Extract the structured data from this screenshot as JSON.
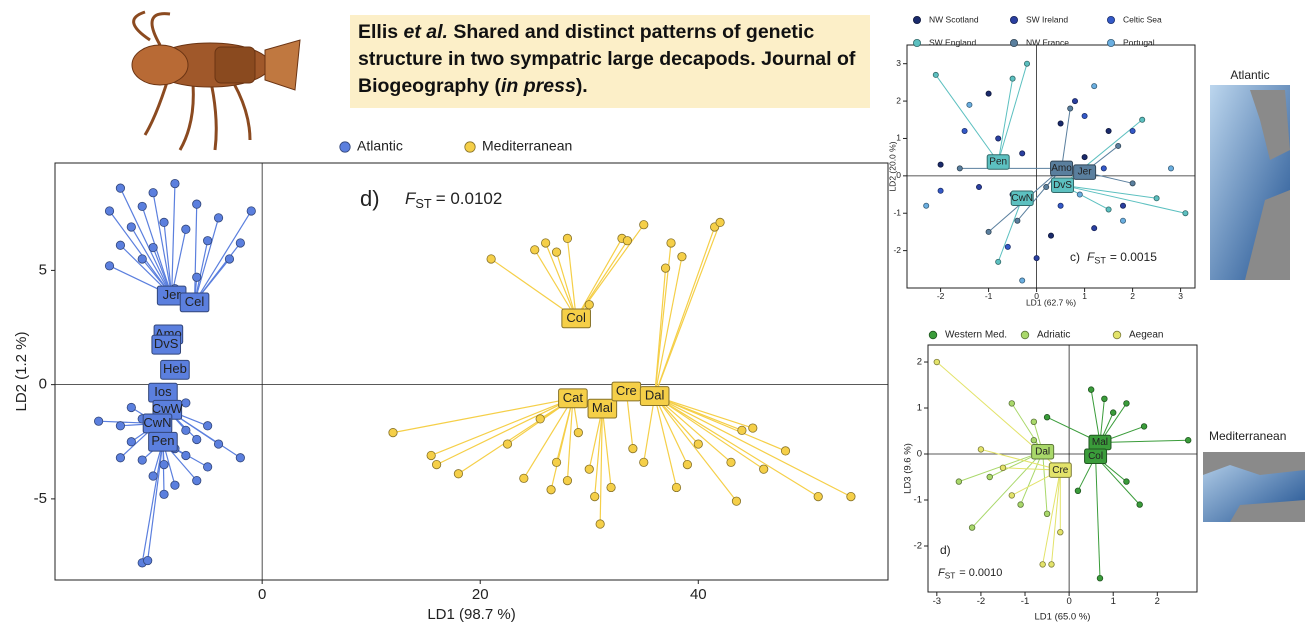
{
  "header": {
    "title": [
      "Ellis ",
      "et al.",
      " Shared and distinct patterns of genetic structure in two sympatric large decapods. Journal of Biogeography (",
      "in press",
      ")."
    ]
  },
  "maps": [
    {
      "label": "Atlantic"
    },
    {
      "label": "Mediterranean"
    }
  ],
  "chart_data": [
    {
      "type": "scatter",
      "x_label": "LD1 (98.7 %)",
      "y_label": "LD2 (1.2 %)",
      "annotation": {
        "prefix": "d)",
        "f": "F",
        "sub": "ST",
        "text": "= 0.0102"
      },
      "xlim": [
        -19,
        57.4
      ],
      "ylim": [
        -8.55,
        9.7
      ],
      "xticks": [
        0,
        20,
        40
      ],
      "yticks": [
        -5,
        0,
        5
      ],
      "series": [
        {
          "name": "Atlantic",
          "color": "#5b7fde",
          "x": [
            -13,
            -10,
            -8,
            -14,
            -11,
            -6,
            -4,
            -12,
            -9,
            -7,
            -5,
            -13,
            -10,
            -2,
            -3,
            -14,
            -11,
            -8,
            -6,
            -1,
            -13,
            -11,
            -9,
            -7,
            -5,
            -12,
            -10,
            -8,
            -6,
            -4,
            -13,
            -11,
            -9,
            -7,
            -5,
            -10,
            -8,
            -6,
            -9,
            -15,
            -2,
            -11,
            -10.5,
            -12,
            -7
          ],
          "y": [
            8.6,
            8.4,
            8.8,
            7.6,
            7.8,
            7.9,
            7.3,
            6.9,
            7.1,
            6.8,
            6.3,
            6.1,
            6.0,
            6.2,
            5.5,
            5.2,
            5.5,
            4.2,
            4.7,
            7.6,
            -1.8,
            -1.5,
            -1.7,
            -2.0,
            -1.8,
            -2.5,
            -2.6,
            -2.8,
            -2.4,
            -2.6,
            -3.2,
            -3.3,
            -3.5,
            -3.1,
            -3.6,
            -4.0,
            -4.4,
            -4.2,
            -4.8,
            -1.6,
            -3.2,
            -7.8,
            -7.7,
            -1.0,
            -0.8
          ],
          "centroids": [
            {
              "label": "Jer",
              "x": -8.3,
              "y": 3.9
            },
            {
              "label": "Cel",
              "x": -6.2,
              "y": 3.6
            },
            {
              "label": "Amo",
              "x": -8.6,
              "y": 2.2
            },
            {
              "label": "DvS",
              "x": -8.8,
              "y": 1.75
            },
            {
              "label": "Heb",
              "x": -8.0,
              "y": 0.65
            },
            {
              "label": "Ios",
              "x": -9.1,
              "y": -0.35
            },
            {
              "label": "CwW",
              "x": -8.7,
              "y": -1.1
            },
            {
              "label": "CwN",
              "x": -9.6,
              "y": -1.7
            },
            {
              "label": "Pen",
              "x": -9.1,
              "y": -2.5
            }
          ]
        },
        {
          "name": "Mediterranean",
          "color": "#f5cf48",
          "x": [
            12,
            15.5,
            16,
            18,
            21,
            22.5,
            24,
            25,
            26,
            27,
            28,
            25.5,
            27,
            26.5,
            28,
            29,
            30,
            31,
            30.5,
            32,
            33,
            33.5,
            34,
            35,
            37,
            37.5,
            38.5,
            39,
            38,
            40,
            41.5,
            42,
            43,
            44,
            45,
            43.5,
            46,
            48,
            51,
            54,
            30,
            35
          ],
          "y": [
            -2.1,
            -3.1,
            -3.5,
            -3.9,
            5.5,
            -2.6,
            -4.1,
            5.9,
            6.2,
            5.8,
            6.4,
            -1.5,
            -3.4,
            -4.6,
            -4.2,
            -2.1,
            -3.7,
            -6.1,
            -4.9,
            -4.5,
            6.4,
            6.3,
            -2.8,
            -3.4,
            5.1,
            6.2,
            5.6,
            -3.5,
            -4.5,
            -2.6,
            6.9,
            7.1,
            -3.4,
            -2.0,
            -1.9,
            -5.1,
            -3.7,
            -2.9,
            -4.9,
            -4.9,
            3.5,
            7.0
          ],
          "centroids": [
            {
              "label": "Col",
              "x": 28.8,
              "y": 2.9
            },
            {
              "label": "Cat",
              "x": 28.5,
              "y": -0.6
            },
            {
              "label": "Mal",
              "x": 31.2,
              "y": -1.05
            },
            {
              "label": "Cre",
              "x": 33.4,
              "y": -0.3
            },
            {
              "label": "Dal",
              "x": 36.0,
              "y": -0.5
            }
          ]
        }
      ]
    },
    {
      "type": "scatter",
      "x_label": "LD1 (62.7 %)",
      "y_label": "LD2 (20.0 %)",
      "annotation": {
        "prefix": "c)",
        "f": "F",
        "sub": "ST",
        "text": "= 0.0015"
      },
      "xlim": [
        -2.7,
        3.3
      ],
      "ylim": [
        -3.0,
        3.5
      ],
      "xticks": [
        -2,
        -1,
        0,
        1,
        2,
        3
      ],
      "yticks": [
        -2,
        -1,
        0,
        1,
        2,
        3
      ],
      "series": [
        {
          "name": "NW Scotland",
          "color": "#1a2a6c",
          "x": [
            -1,
            0.5,
            -0.5,
            1.5,
            -2,
            0.3,
            1
          ],
          "y": [
            2.2,
            1.4,
            -0.5,
            1.2,
            0.3,
            -1.6,
            0.5
          ],
          "centroids": []
        },
        {
          "name": "SW Ireland",
          "color": "#2a3fa0",
          "x": [
            -0.8,
            0.8,
            -1.2,
            1.8,
            0,
            -0.3,
            1.2
          ],
          "y": [
            1.0,
            2.0,
            -0.3,
            -0.8,
            -2.2,
            0.6,
            -1.4
          ],
          "centroids": []
        },
        {
          "name": "Celtic Sea",
          "color": "#3459c8",
          "x": [
            -1.5,
            1,
            0.5,
            2,
            -0.6,
            1.4,
            -2
          ],
          "y": [
            1.2,
            1.6,
            -0.8,
            1.2,
            -1.9,
            0.2,
            -0.4
          ],
          "centroids": []
        },
        {
          "name": "SW England",
          "color": "#5cc0c0",
          "x": [
            -2.1,
            -0.5,
            -0.2,
            2.5,
            3.1,
            -0.8,
            1.5,
            2.2
          ],
          "y": [
            2.7,
            2.6,
            3.0,
            -0.6,
            -1.0,
            -2.3,
            -0.9,
            1.5
          ],
          "centroids": [
            {
              "label": "Pen",
              "x": -0.8,
              "y": 0.37
            },
            {
              "label": "DvS",
              "x": 0.54,
              "y": -0.25
            },
            {
              "label": "CwN",
              "x": -0.3,
              "y": -0.6
            }
          ]
        },
        {
          "name": "NW France",
          "color": "#5a7f9e",
          "x": [
            -1.6,
            0.7,
            -0.4,
            1.7,
            0.2,
            -1,
            2
          ],
          "y": [
            0.2,
            1.8,
            -1.2,
            0.8,
            -0.3,
            -1.5,
            -0.2
          ],
          "centroids": [
            {
              "label": "Amo",
              "x": 0.52,
              "y": 0.2
            },
            {
              "label": "Jer",
              "x": 1.0,
              "y": 0.1
            }
          ]
        },
        {
          "name": "Portugal",
          "color": "#6aaee0",
          "x": [
            -1.4,
            1.2,
            -0.3,
            2.8,
            0.9,
            -2.3,
            1.8
          ],
          "y": [
            1.9,
            2.4,
            -2.8,
            0.2,
            -0.5,
            -0.8,
            -1.2
          ],
          "centroids": []
        }
      ]
    },
    {
      "type": "scatter",
      "x_label": "LD1 (65.0 %)",
      "y_label": "LD3 (9.6 %)",
      "annotation": {
        "prefix": "d)",
        "f": "F",
        "sub": "ST",
        "text": "= 0.0010"
      },
      "xlim": [
        -3.2,
        2.9
      ],
      "ylim": [
        -3.0,
        2.37
      ],
      "xticks": [
        -3,
        -2,
        -1,
        0,
        1,
        2
      ],
      "yticks": [
        -2,
        -1,
        0,
        1,
        2
      ],
      "series": [
        {
          "name": "Western Med.",
          "color": "#3a9c3a",
          "x": [
            0.5,
            0.8,
            1.3,
            1.7,
            2.7,
            0.2,
            0.7,
            1.3,
            -0.5,
            1,
            1.6
          ],
          "y": [
            1.4,
            1.2,
            1.1,
            0.6,
            0.3,
            -0.8,
            -2.7,
            -0.6,
            0.8,
            0.9,
            -1.1
          ],
          "centroids": [
            {
              "label": "Mal",
              "x": 0.7,
              "y": 0.25
            },
            {
              "label": "Col",
              "x": 0.6,
              "y": -0.05
            }
          ]
        },
        {
          "name": "Adriatic",
          "color": "#a9d86a",
          "x": [
            -1.3,
            -0.8,
            -2.5,
            -1.8,
            -0.5,
            -0.8,
            -2.2,
            -1.1
          ],
          "y": [
            1.1,
            0.3,
            -0.6,
            -0.5,
            -1.3,
            0.7,
            -1.6,
            -1.1
          ],
          "centroids": [
            {
              "label": "Dal",
              "x": -0.6,
              "y": 0.05
            }
          ]
        },
        {
          "name": "Aegean",
          "color": "#e3e36a",
          "x": [
            -3,
            -1.5,
            -0.4,
            -0.6,
            -0.2,
            -2.0,
            -1.3
          ],
          "y": [
            2.0,
            -0.3,
            -2.4,
            -2.4,
            -1.7,
            0.1,
            -0.9
          ],
          "centroids": [
            {
              "label": "Cre",
              "x": -0.2,
              "y": -0.35
            }
          ]
        }
      ]
    }
  ]
}
